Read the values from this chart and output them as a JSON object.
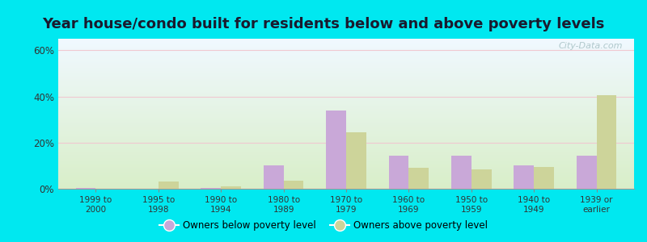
{
  "title": "Year house/condo built for residents below and above poverty levels",
  "categories": [
    "1999 to\n2000",
    "1995 to\n1998",
    "1990 to\n1994",
    "1980 to\n1989",
    "1970 to\n1979",
    "1960 to\n1969",
    "1950 to\n1959",
    "1940 to\n1949",
    "1939 or\nearlier"
  ],
  "below_poverty": [
    0.5,
    0.0,
    0.5,
    10.0,
    34.0,
    14.5,
    14.5,
    10.0,
    14.5
  ],
  "above_poverty": [
    0.0,
    3.0,
    1.0,
    3.5,
    24.5,
    9.0,
    8.5,
    9.5,
    40.5
  ],
  "below_color": "#c9a8d8",
  "above_color": "#cdd49a",
  "background_top": "#f0f8ff",
  "background_bottom": "#d8eec8",
  "gridline_color": "#f0c8d0",
  "outer_bg": "#00e8f0",
  "yticks": [
    0,
    20,
    40,
    60
  ],
  "ylim": [
    0,
    65
  ],
  "title_fontsize": 13,
  "legend_below": "Owners below poverty level",
  "legend_above": "Owners above poverty level"
}
